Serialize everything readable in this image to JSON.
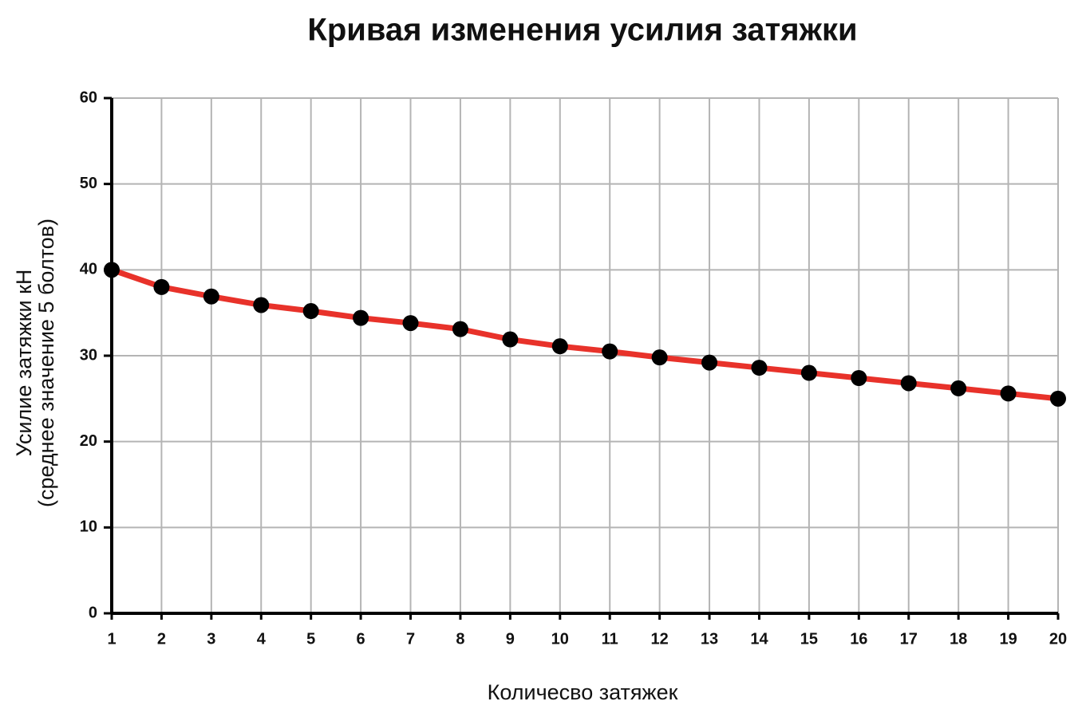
{
  "chart_data": {
    "type": "line",
    "title": "Кривая изменения усилия затяжки",
    "xlabel": "Количесво затяжек",
    "ylabel_lines": [
      "Усилие затяжки кН",
      "(среднее значение 5 болтов)"
    ],
    "x": [
      1,
      2,
      3,
      4,
      5,
      6,
      7,
      8,
      9,
      10,
      11,
      12,
      13,
      14,
      15,
      16,
      17,
      18,
      19,
      20
    ],
    "values": [
      40.0,
      38.0,
      36.9,
      35.9,
      35.2,
      34.4,
      33.8,
      33.1,
      31.9,
      31.1,
      30.5,
      29.8,
      29.2,
      28.6,
      28.0,
      27.4,
      26.8,
      26.2,
      25.6,
      25.0
    ],
    "color": "#e8322a",
    "marker_color": "#000000",
    "title_color": "#1a4fa0",
    "xlim": [
      1,
      20
    ],
    "xticks": [
      1,
      2,
      3,
      4,
      5,
      6,
      7,
      8,
      9,
      10,
      11,
      12,
      13,
      14,
      15,
      16,
      17,
      18,
      19,
      20
    ],
    "ylim": [
      0,
      60
    ],
    "yticks": [
      0,
      10,
      20,
      30,
      40,
      50,
      60
    ],
    "grid": true
  }
}
